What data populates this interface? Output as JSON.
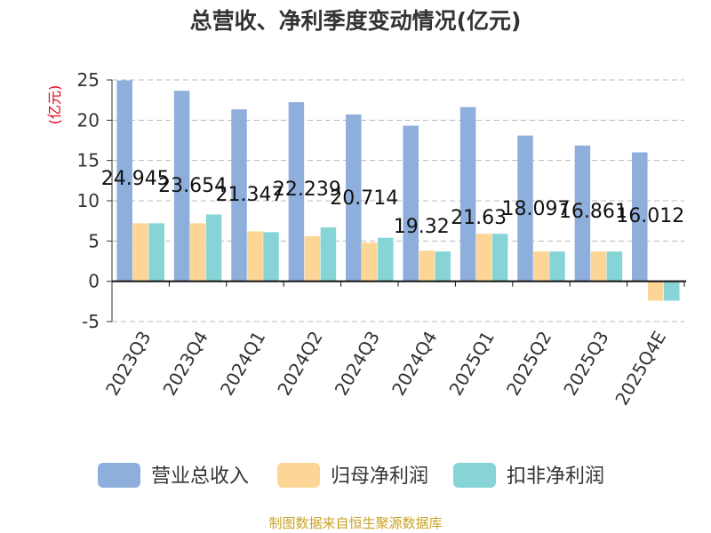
{
  "title": "总营收、净利季度变动情况(亿元)",
  "source": "制图数据来自恒生聚源数据库",
  "chart_data": {
    "type": "bar",
    "title": "总营收、净利季度变动情况(亿元)",
    "ylabel": "(亿元)",
    "ylabel_color": "#E0001B",
    "ylim": [
      -5,
      25
    ],
    "yticks": [
      25,
      20,
      15,
      10,
      5,
      0,
      -5
    ],
    "ytick_labels": [
      "25",
      "20",
      "15",
      "10",
      "5",
      "0",
      "-5"
    ],
    "grid": "horizontal-dashed",
    "legend_position": "bottom",
    "categories": [
      "2023Q3",
      "2023Q4",
      "2024Q1",
      "2024Q2",
      "2024Q3",
      "2024Q4",
      "2025Q1",
      "2025Q2",
      "2025Q3",
      "2025Q4E"
    ],
    "series": [
      {
        "name": "营业总收入",
        "color": "#8EAEDB",
        "values": [
          24.945,
          23.654,
          21.347,
          22.239,
          20.714,
          19.32,
          21.63,
          18.097,
          16.861,
          16.012
        ],
        "labels": [
          "24.945",
          "23.654",
          "21.347",
          "22.239",
          "20.714",
          "19.32",
          "21.63",
          "18.097",
          "16.861",
          "16.012"
        ]
      },
      {
        "name": "归母净利润",
        "color": "#FDD596",
        "values": [
          7.2,
          7.2,
          6.2,
          5.6,
          4.8,
          3.8,
          5.9,
          3.7,
          3.7,
          -2.4
        ]
      },
      {
        "name": "扣非净利润",
        "color": "#86D4D6",
        "values": [
          7.2,
          8.3,
          6.1,
          6.7,
          5.4,
          3.7,
          5.9,
          3.7,
          3.7,
          -2.4
        ]
      }
    ]
  }
}
